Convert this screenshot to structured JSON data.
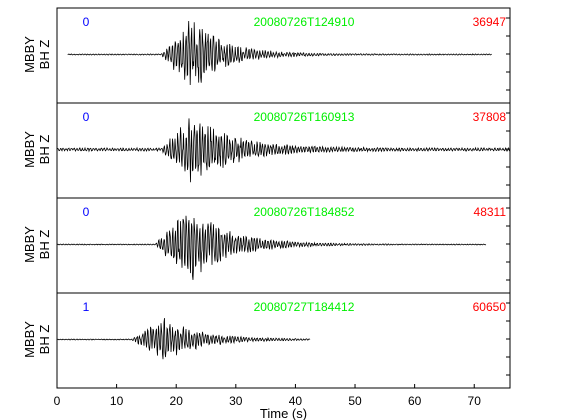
{
  "chart_data": {
    "type": "line",
    "title": "",
    "xlabel": "Time (s)",
    "xlim": [
      0,
      76
    ],
    "xticks": [
      "0",
      "10",
      "20",
      "30",
      "40",
      "50",
      "60",
      "70"
    ],
    "grid": false,
    "colors": {
      "index": "#0000ff",
      "time": "#00ee00",
      "amplitude": "#ff0000",
      "trace": "#000000"
    },
    "panels": [
      {
        "station": "MBBY",
        "channel": "BH Z",
        "index_label": "0",
        "time_label": "20080726T124910",
        "amplitude_label": "36947",
        "x_start": 1.8,
        "x_end": 73,
        "onset": 17.5,
        "peak": 22.5,
        "decay": 5.5,
        "noise": 0.015,
        "amplitude": 0.95,
        "seed": 11
      },
      {
        "station": "MBBY",
        "channel": "BH Z",
        "index_label": "0",
        "time_label": "20080726T160913",
        "amplitude_label": "37808",
        "x_start": 0,
        "x_end": 76,
        "onset": 17.5,
        "peak": 22.5,
        "decay": 7,
        "noise": 0.04,
        "amplitude": 0.9,
        "seed": 23
      },
      {
        "station": "MBBY",
        "channel": "BH Z",
        "index_label": "0",
        "time_label": "20080726T184852",
        "amplitude_label": "48311",
        "x_start": 0,
        "x_end": 72,
        "onset": 16.5,
        "peak": 22,
        "decay": 6.5,
        "noise": 0.012,
        "amplitude": 1.0,
        "seed": 37
      },
      {
        "station": "MBBY",
        "channel": "BH Z",
        "index_label": "1",
        "time_label": "20080727T184412",
        "amplitude_label": "60650",
        "x_start": 0,
        "x_end": 42.5,
        "onset": 12.5,
        "peak": 18,
        "decay": 6,
        "noise": 0.012,
        "amplitude": 0.55,
        "seed": 53
      }
    ]
  }
}
